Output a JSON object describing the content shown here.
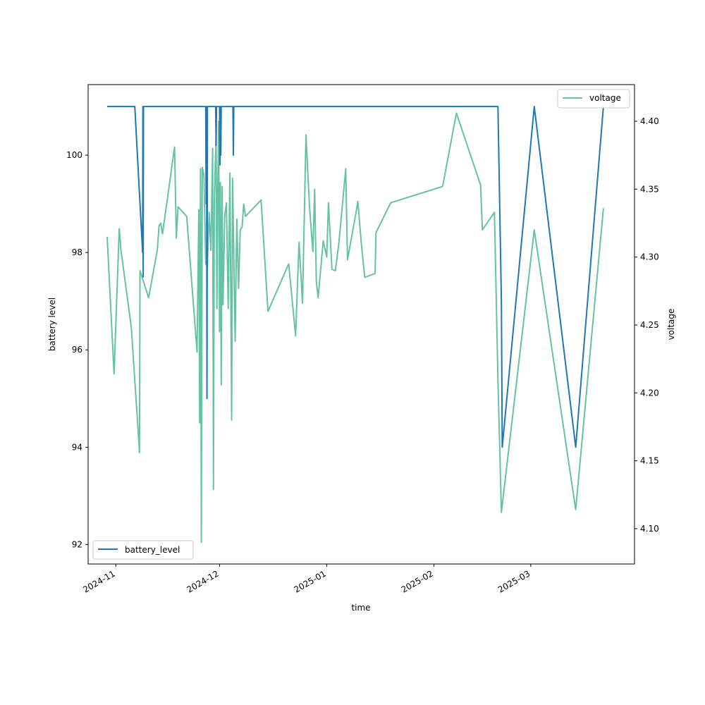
{
  "chart_data": {
    "type": "line",
    "xlabel": "time",
    "ylabel": "battery level",
    "y2label": "voltage",
    "xlim": [
      "2024-10-24",
      "2025-03-31"
    ],
    "ylim": [
      91.6,
      101.45
    ],
    "y2lim": [
      4.074,
      4.427
    ],
    "x_ticks": [
      "2024-11",
      "2024-12",
      "2025-01",
      "2025-02",
      "2025-03"
    ],
    "y_ticks": [
      92,
      94,
      96,
      98,
      100
    ],
    "y2_ticks": [
      "4.10",
      "4.15",
      "4.20",
      "4.25",
      "4.30",
      "4.35",
      "4.40"
    ],
    "legend_left": {
      "label": "battery_level",
      "placement": "lower left"
    },
    "legend_right": {
      "label": "voltage",
      "placement": "upper right"
    },
    "colors": {
      "battery_level": "#1f77b4",
      "voltage": "#66c2a5"
    },
    "series": [
      {
        "name": "battery_level",
        "axis": "left",
        "points": [
          [
            "2024-10-29T12:00",
            101
          ],
          [
            "2024-11-06T12:00",
            101
          ],
          [
            "2024-11-08T18:00",
            98
          ],
          [
            "2024-11-08T20:00",
            101
          ],
          [
            "2024-11-08T22:00",
            97.5
          ],
          [
            "2024-11-09T00:00",
            101
          ],
          [
            "2024-11-27T00:00",
            101
          ],
          [
            "2024-11-27T03:00",
            99
          ],
          [
            "2024-11-27T06:00",
            101
          ],
          [
            "2024-11-27T09:00",
            95
          ],
          [
            "2024-11-27T12:00",
            101
          ],
          [
            "2024-11-29T21:00",
            101
          ],
          [
            "2024-11-30T00:00",
            100.2
          ],
          [
            "2024-11-30T03:00",
            101
          ],
          [
            "2024-12-01T00:00",
            101
          ],
          [
            "2024-12-01T03:00",
            99.8
          ],
          [
            "2024-12-01T06:00",
            101
          ],
          [
            "2024-12-01T09:00",
            100
          ],
          [
            "2024-12-01T12:00",
            101
          ],
          [
            "2024-12-04T21:00",
            101
          ],
          [
            "2024-12-05T00:00",
            100
          ],
          [
            "2024-12-05T03:00",
            101
          ],
          [
            "2025-02-19T12:00",
            101
          ],
          [
            "2025-02-20T12:00",
            97
          ],
          [
            "2025-02-20T18:00",
            94
          ],
          [
            "2025-03-02T00:00",
            101
          ],
          [
            "2025-03-14T00:00",
            94
          ],
          [
            "2025-03-22T00:00",
            101
          ]
        ]
      },
      {
        "name": "voltage",
        "axis": "right",
        "points": [
          [
            "2024-10-29T12:00",
            4.315
          ],
          [
            "2024-10-31T12:00",
            4.214
          ],
          [
            "2024-11-02T00:00",
            4.321
          ],
          [
            "2024-11-02T12:00",
            4.305
          ],
          [
            "2024-11-05T12:00",
            4.248
          ],
          [
            "2024-11-07T18:00",
            4.161
          ],
          [
            "2024-11-07T20:00",
            4.156
          ],
          [
            "2024-11-08T00:00",
            4.29
          ],
          [
            "2024-11-10T12:00",
            4.27
          ],
          [
            "2024-11-12T12:00",
            4.298
          ],
          [
            "2024-11-13T00:00",
            4.305
          ],
          [
            "2024-11-13T12:00",
            4.323
          ],
          [
            "2024-11-14T00:00",
            4.325
          ],
          [
            "2024-11-14T12:00",
            4.317
          ],
          [
            "2024-11-18T00:00",
            4.381
          ],
          [
            "2024-11-18T12:00",
            4.314
          ],
          [
            "2024-11-19T00:00",
            4.337
          ],
          [
            "2024-11-21T12:00",
            4.33
          ],
          [
            "2024-11-24T12:00",
            4.23
          ],
          [
            "2024-11-25T00:00",
            4.335
          ],
          [
            "2024-11-25T06:00",
            4.178
          ],
          [
            "2024-11-25T12:00",
            4.365
          ],
          [
            "2024-11-25T18:00",
            4.09
          ],
          [
            "2024-11-26T00:00",
            4.366
          ],
          [
            "2024-11-26T12:00",
            4.36
          ],
          [
            "2024-11-27T00:00",
            4.295
          ],
          [
            "2024-11-27T12:00",
            4.293
          ],
          [
            "2024-11-28T00:00",
            4.333
          ],
          [
            "2024-11-28T12:00",
            4.305
          ],
          [
            "2024-11-29T00:00",
            4.38
          ],
          [
            "2024-11-29T06:00",
            4.129
          ],
          [
            "2024-11-29T12:00",
            4.34
          ],
          [
            "2024-11-30T00:00",
            4.39
          ],
          [
            "2024-11-30T06:00",
            4.262
          ],
          [
            "2024-11-30T12:00",
            4.35
          ],
          [
            "2024-11-30T18:00",
            4.4
          ],
          [
            "2024-12-01T00:00",
            4.245
          ],
          [
            "2024-12-01T06:00",
            4.355
          ],
          [
            "2024-12-01T12:00",
            4.206
          ],
          [
            "2024-12-01T18:00",
            4.352
          ],
          [
            "2024-12-02T00:00",
            4.265
          ],
          [
            "2024-12-02T12:00",
            4.33
          ],
          [
            "2024-12-03T00:00",
            4.34
          ],
          [
            "2024-12-03T12:00",
            4.262
          ],
          [
            "2024-12-04T00:00",
            4.362
          ],
          [
            "2024-12-04T06:00",
            4.275
          ],
          [
            "2024-12-04T12:00",
            4.18
          ],
          [
            "2024-12-04T18:00",
            4.358
          ],
          [
            "2024-12-05T00:00",
            4.323
          ],
          [
            "2024-12-05T12:00",
            4.238
          ],
          [
            "2024-12-06T00:00",
            4.328
          ],
          [
            "2024-12-06T12:00",
            4.277
          ],
          [
            "2024-12-07T00:00",
            4.32
          ],
          [
            "2024-12-07T12:00",
            4.322
          ],
          [
            "2024-12-08T00:00",
            4.339
          ],
          [
            "2024-12-08T12:00",
            4.33
          ],
          [
            "2024-12-13T00:00",
            4.342
          ],
          [
            "2024-12-15T00:00",
            4.26
          ],
          [
            "2024-12-21T00:00",
            4.295
          ],
          [
            "2024-12-23T00:00",
            4.242
          ],
          [
            "2024-12-24T00:00",
            4.311
          ],
          [
            "2024-12-25T00:00",
            4.266
          ],
          [
            "2024-12-26T00:00",
            4.39
          ],
          [
            "2024-12-27T00:00",
            4.338
          ],
          [
            "2024-12-28T00:00",
            4.304
          ],
          [
            "2024-12-28T12:00",
            4.35
          ],
          [
            "2024-12-29T00:00",
            4.282
          ],
          [
            "2024-12-29T12:00",
            4.27
          ],
          [
            "2024-12-31T00:00",
            4.312
          ],
          [
            "2025-01-01T00:00",
            4.3
          ],
          [
            "2025-01-01T12:00",
            4.34
          ],
          [
            "2025-01-02T12:00",
            4.291
          ],
          [
            "2025-01-03T12:00",
            4.29
          ],
          [
            "2025-01-04T12:00",
            4.31
          ],
          [
            "2025-01-06T12:00",
            4.365
          ],
          [
            "2025-01-07T00:00",
            4.298
          ],
          [
            "2025-01-09T12:00",
            4.333
          ],
          [
            "2025-01-10T00:00",
            4.341
          ],
          [
            "2025-01-11T00:00",
            4.31
          ],
          [
            "2025-01-12T00:00",
            4.285
          ],
          [
            "2025-01-15T00:00",
            4.288
          ],
          [
            "2025-01-15T06:00",
            4.318
          ],
          [
            "2025-01-19T12:00",
            4.34
          ],
          [
            "2025-02-03T12:00",
            4.352
          ],
          [
            "2025-02-07T12:00",
            4.406
          ],
          [
            "2025-02-14T12:00",
            4.353
          ],
          [
            "2025-02-15T00:00",
            4.32
          ],
          [
            "2025-02-18T12:00",
            4.333
          ],
          [
            "2025-02-19T12:00",
            4.21
          ],
          [
            "2025-02-20T12:00",
            4.112
          ],
          [
            "2025-03-02T00:00",
            4.32
          ],
          [
            "2025-03-14T00:00",
            4.114
          ],
          [
            "2025-03-22T00:00",
            4.336
          ]
        ]
      }
    ]
  }
}
